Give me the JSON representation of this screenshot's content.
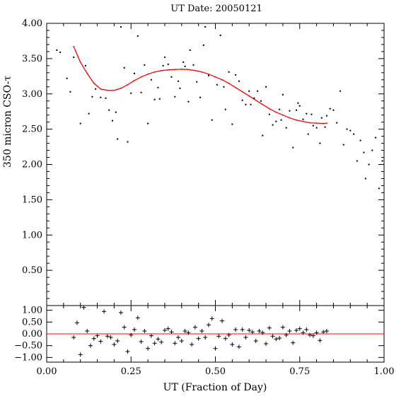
{
  "chart_data": [
    {
      "type": "scatter",
      "panel": "main",
      "title": "UT Date: 20050121",
      "ylabel": "350 micron CSO-τ",
      "xlim": [
        0.0,
        1.0
      ],
      "ylim": [
        0.0,
        4.0
      ],
      "x_ticks": [
        "0.00",
        "0.25",
        "0.50",
        "0.75",
        "1.00"
      ],
      "y_ticks": [
        "0.50",
        "1.00",
        "1.50",
        "2.00",
        "2.50",
        "3.00",
        "3.50",
        "4.00"
      ],
      "grid": false,
      "marker_color": "#000000",
      "fit_color": "#ff0000",
      "points": [
        [
          0.03,
          3.62
        ],
        [
          0.04,
          3.59
        ],
        [
          0.06,
          3.22
        ],
        [
          0.07,
          3.03
        ],
        [
          0.08,
          3.52
        ],
        [
          0.1,
          2.58
        ],
        [
          0.115,
          3.4
        ],
        [
          0.125,
          2.72
        ],
        [
          0.135,
          2.96
        ],
        [
          0.145,
          3.07
        ],
        [
          0.16,
          2.95
        ],
        [
          0.175,
          2.94
        ],
        [
          0.185,
          2.77
        ],
        [
          0.195,
          2.62
        ],
        [
          0.205,
          2.74
        ],
        [
          0.21,
          2.36
        ],
        [
          0.22,
          3.95
        ],
        [
          0.23,
          3.37
        ],
        [
          0.24,
          2.32
        ],
        [
          0.25,
          3.01
        ],
        [
          0.26,
          3.29
        ],
        [
          0.27,
          3.82
        ],
        [
          0.28,
          3.02
        ],
        [
          0.29,
          3.41
        ],
        [
          0.3,
          2.58
        ],
        [
          0.31,
          3.2
        ],
        [
          0.32,
          2.92
        ],
        [
          0.33,
          3.09
        ],
        [
          0.335,
          2.93
        ],
        [
          0.345,
          3.4
        ],
        [
          0.35,
          3.52
        ],
        [
          0.36,
          3.42
        ],
        [
          0.37,
          3.24
        ],
        [
          0.38,
          2.96
        ],
        [
          0.39,
          3.18
        ],
        [
          0.395,
          3.08
        ],
        [
          0.405,
          3.45
        ],
        [
          0.41,
          3.39
        ],
        [
          0.42,
          2.89
        ],
        [
          0.425,
          3.62
        ],
        [
          0.435,
          3.41
        ],
        [
          0.445,
          3.17
        ],
        [
          0.455,
          2.95
        ],
        [
          0.465,
          3.69
        ],
        [
          0.47,
          3.95
        ],
        [
          0.48,
          3.26
        ],
        [
          0.49,
          2.63
        ],
        [
          0.505,
          3.13
        ],
        [
          0.515,
          3.83
        ],
        [
          0.525,
          3.1
        ],
        [
          0.53,
          2.78
        ],
        [
          0.54,
          3.31
        ],
        [
          0.55,
          2.57
        ],
        [
          0.56,
          3.27
        ],
        [
          0.57,
          3.18
        ],
        [
          0.58,
          2.91
        ],
        [
          0.59,
          2.85
        ],
        [
          0.6,
          3.04
        ],
        [
          0.605,
          2.85
        ],
        [
          0.615,
          2.94
        ],
        [
          0.625,
          3.04
        ],
        [
          0.635,
          2.9
        ],
        [
          0.64,
          2.41
        ],
        [
          0.65,
          3.1
        ],
        [
          0.66,
          2.71
        ],
        [
          0.67,
          2.56
        ],
        [
          0.68,
          2.61
        ],
        [
          0.69,
          2.78
        ],
        [
          0.695,
          2.63
        ],
        [
          0.7,
          2.99
        ],
        [
          0.71,
          2.52
        ],
        [
          0.72,
          2.76
        ],
        [
          0.73,
          2.24
        ],
        [
          0.74,
          2.77
        ],
        [
          0.745,
          2.87
        ],
        [
          0.75,
          2.83
        ],
        [
          0.76,
          2.64
        ],
        [
          0.77,
          2.72
        ],
        [
          0.775,
          2.43
        ],
        [
          0.785,
          2.71
        ],
        [
          0.79,
          2.55
        ],
        [
          0.8,
          2.52
        ],
        [
          0.81,
          2.3
        ],
        [
          0.815,
          2.66
        ],
        [
          0.825,
          2.53
        ],
        [
          0.83,
          2.69
        ],
        [
          0.84,
          2.79
        ],
        [
          0.85,
          2.77
        ],
        [
          0.86,
          2.59
        ],
        [
          0.87,
          3.04
        ],
        [
          0.88,
          2.28
        ],
        [
          0.89,
          2.5
        ],
        [
          0.9,
          2.48
        ],
        [
          0.91,
          2.43
        ],
        [
          0.92,
          2.05
        ],
        [
          0.93,
          2.34
        ],
        [
          0.94,
          2.17
        ],
        [
          0.945,
          1.8
        ],
        [
          0.955,
          2.0
        ],
        [
          0.965,
          2.2
        ],
        [
          0.975,
          2.38
        ],
        [
          0.985,
          1.66
        ],
        [
          0.995,
          2.05
        ]
      ],
      "fit_curve": [
        [
          0.08,
          3.67
        ],
        [
          0.1,
          3.45
        ],
        [
          0.12,
          3.29
        ],
        [
          0.14,
          3.15
        ],
        [
          0.16,
          3.07
        ],
        [
          0.18,
          3.05
        ],
        [
          0.2,
          3.05
        ],
        [
          0.22,
          3.08
        ],
        [
          0.24,
          3.13
        ],
        [
          0.26,
          3.19
        ],
        [
          0.28,
          3.24
        ],
        [
          0.3,
          3.28
        ],
        [
          0.32,
          3.31
        ],
        [
          0.34,
          3.33
        ],
        [
          0.36,
          3.34
        ],
        [
          0.38,
          3.345
        ],
        [
          0.4,
          3.35
        ],
        [
          0.42,
          3.345
        ],
        [
          0.44,
          3.33
        ],
        [
          0.46,
          3.31
        ],
        [
          0.48,
          3.28
        ],
        [
          0.5,
          3.24
        ],
        [
          0.52,
          3.2
        ],
        [
          0.54,
          3.15
        ],
        [
          0.56,
          3.09
        ],
        [
          0.58,
          3.03
        ],
        [
          0.6,
          2.97
        ],
        [
          0.62,
          2.91
        ],
        [
          0.64,
          2.85
        ],
        [
          0.66,
          2.79
        ],
        [
          0.68,
          2.74
        ],
        [
          0.7,
          2.7
        ],
        [
          0.72,
          2.66
        ],
        [
          0.74,
          2.63
        ],
        [
          0.76,
          2.61
        ],
        [
          0.78,
          2.59
        ],
        [
          0.8,
          2.585
        ],
        [
          0.82,
          2.58
        ],
        [
          0.83,
          2.585
        ]
      ]
    },
    {
      "type": "scatter",
      "panel": "residuals",
      "xlabel": "UT (Fraction of Day)",
      "xlim": [
        0.0,
        1.0
      ],
      "ylim": [
        -1.2,
        1.2
      ],
      "x_ticks": [
        "0.00",
        "0.25",
        "0.50",
        "0.75",
        "1.00"
      ],
      "y_ticks": [
        "1.00",
        "0.50",
        "0.00",
        "−0.50",
        "−1.00"
      ],
      "zero_line": 0.0,
      "grid": false,
      "marker_color": "#000000",
      "zero_line_color": "#ff0000",
      "points": [
        [
          0.08,
          -0.15
        ],
        [
          0.09,
          0.47
        ],
        [
          0.1,
          -0.88
        ],
        [
          0.11,
          1.12
        ],
        [
          0.12,
          0.12
        ],
        [
          0.13,
          -0.5
        ],
        [
          0.14,
          -0.2
        ],
        [
          0.15,
          -0.08
        ],
        [
          0.16,
          -0.32
        ],
        [
          0.17,
          0.95
        ],
        [
          0.18,
          -0.1
        ],
        [
          0.19,
          -0.15
        ],
        [
          0.2,
          -0.45
        ],
        [
          0.21,
          -0.3
        ],
        [
          0.22,
          0.9
        ],
        [
          0.23,
          0.28
        ],
        [
          0.24,
          -0.75
        ],
        [
          0.25,
          -0.05
        ],
        [
          0.26,
          0.18
        ],
        [
          0.27,
          0.68
        ],
        [
          0.28,
          -0.33
        ],
        [
          0.29,
          0.12
        ],
        [
          0.3,
          -0.62
        ],
        [
          0.31,
          -0.08
        ],
        [
          0.32,
          -0.4
        ],
        [
          0.33,
          -0.22
        ],
        [
          0.34,
          -0.35
        ],
        [
          0.35,
          0.15
        ],
        [
          0.36,
          0.22
        ],
        [
          0.37,
          0.08
        ],
        [
          0.38,
          -0.4
        ],
        [
          0.39,
          -0.15
        ],
        [
          0.4,
          -0.3
        ],
        [
          0.41,
          0.12
        ],
        [
          0.42,
          0.05
        ],
        [
          0.43,
          -0.45
        ],
        [
          0.44,
          0.28
        ],
        [
          0.45,
          -0.2
        ],
        [
          0.46,
          0.12
        ],
        [
          0.47,
          -0.15
        ],
        [
          0.48,
          0.38
        ],
        [
          0.49,
          0.65
        ],
        [
          0.5,
          -0.62
        ],
        [
          0.51,
          -0.1
        ],
        [
          0.52,
          0.55
        ],
        [
          0.53,
          -0.2
        ],
        [
          0.54,
          -0.05
        ],
        [
          0.55,
          -0.45
        ],
        [
          0.56,
          0.18
        ],
        [
          0.57,
          -0.55
        ],
        [
          0.58,
          0.18
        ],
        [
          0.59,
          -0.15
        ],
        [
          0.6,
          0.15
        ],
        [
          0.61,
          0.08
        ],
        [
          0.62,
          -0.3
        ],
        [
          0.63,
          0.12
        ],
        [
          0.64,
          0.05
        ],
        [
          0.65,
          -0.42
        ],
        [
          0.66,
          0.25
        ],
        [
          0.67,
          -0.1
        ],
        [
          0.68,
          -0.22
        ],
        [
          0.69,
          -0.18
        ],
        [
          0.7,
          0.28
        ],
        [
          0.71,
          -0.05
        ],
        [
          0.72,
          0.12
        ],
        [
          0.73,
          -0.38
        ],
        [
          0.74,
          0.15
        ],
        [
          0.75,
          0.22
        ],
        [
          0.76,
          0.05
        ],
        [
          0.77,
          0.18
        ],
        [
          0.78,
          -0.05
        ],
        [
          0.79,
          -0.08
        ],
        [
          0.8,
          0.05
        ],
        [
          0.81,
          -0.28
        ],
        [
          0.82,
          0.08
        ],
        [
          0.83,
          0.12
        ]
      ]
    }
  ]
}
